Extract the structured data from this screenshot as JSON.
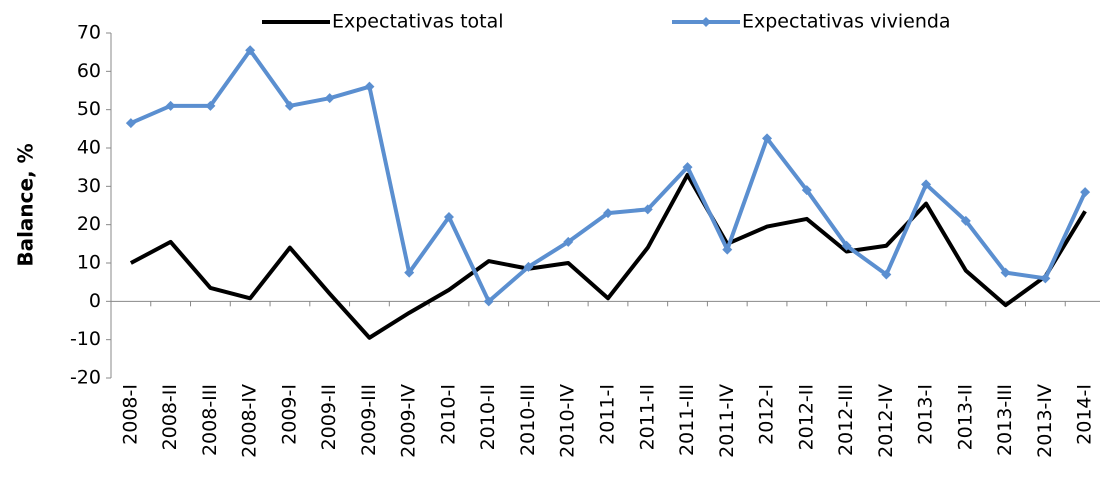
{
  "chart_data": {
    "type": "line",
    "y_label": "Balance, %",
    "categories": [
      "2008-I",
      "2008-II",
      "2008-III",
      "2008-IV",
      "2009-I",
      "2009-II",
      "2009-III",
      "2009-IV",
      "2010-I",
      "2010-II",
      "2010-III",
      "2010-IV",
      "2011-I",
      "2011-II",
      "2011-III",
      "2011-IV",
      "2012-I",
      "2012-II",
      "2012-III",
      "2012-IV",
      "2013-I",
      "2013-II",
      "2013-III",
      "2013-IV",
      "2014-I"
    ],
    "series": [
      {
        "name": "Expectativas total",
        "color": "#000000",
        "marker": false,
        "values": [
          10,
          15.5,
          3.5,
          0.8,
          14,
          2,
          -9.5,
          -3,
          3,
          10.5,
          8.5,
          10,
          0.8,
          14,
          33,
          15,
          19.5,
          21.5,
          13,
          14.5,
          25.5,
          8,
          -1,
          6.5,
          23.5
        ]
      },
      {
        "name": "Expectativas vivienda",
        "color": "#5b8fd0",
        "marker": true,
        "values": [
          46.5,
          51,
          51,
          65.5,
          51,
          53,
          56,
          7.5,
          22,
          0,
          9,
          15.5,
          23,
          24,
          35,
          13.5,
          42.5,
          29,
          14.5,
          7,
          30.5,
          21,
          7.5,
          6,
          28.5
        ]
      }
    ],
    "ylim": [
      -20,
      70
    ],
    "yticks": [
      -20,
      -10,
      0,
      10,
      20,
      30,
      40,
      50,
      60,
      70
    ],
    "grid": false,
    "legend": "top"
  }
}
